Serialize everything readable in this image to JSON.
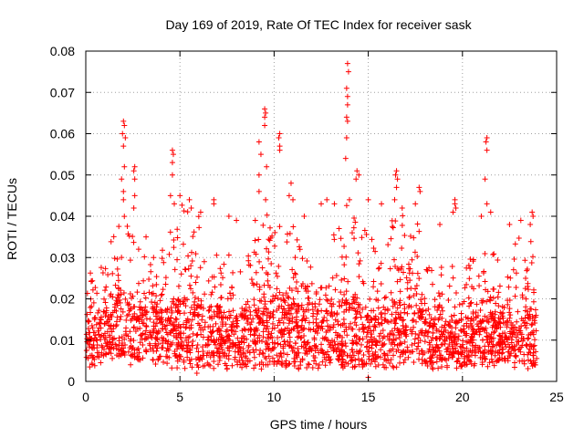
{
  "chart_data": {
    "type": "scatter",
    "title": "Day 169 of 2019, Rate Of TEC Index for receiver sask",
    "xlabel": "GPS time / hours",
    "ylabel": "ROTI / TECUs",
    "xlim": [
      0,
      25
    ],
    "ylim": [
      0,
      0.08
    ],
    "xticks": [
      0,
      5,
      10,
      15,
      20,
      25
    ],
    "yticks": [
      0,
      0.01,
      0.02,
      0.03,
      0.04,
      0.05,
      0.06,
      0.07,
      0.08
    ],
    "xtick_labels": [
      "0",
      "5",
      "10",
      "15",
      "20",
      "25"
    ],
    "ytick_labels": [
      "0",
      "0.01",
      "0.02",
      "0.03",
      "0.04",
      "0.05",
      "0.06",
      "0.07",
      "0.08"
    ],
    "grid": true,
    "marker": "+",
    "marker_color": "#ff0000",
    "background_density": {
      "note": "dense band of points; per time bin [hour, typical_low, typical_high, upper_envelope]",
      "bins": [
        [
          0.0,
          0.005,
          0.014,
          0.024
        ],
        [
          0.5,
          0.005,
          0.016,
          0.03
        ],
        [
          1.0,
          0.006,
          0.017,
          0.028
        ],
        [
          1.5,
          0.006,
          0.02,
          0.038
        ],
        [
          2.0,
          0.006,
          0.022,
          0.045
        ],
        [
          2.5,
          0.005,
          0.018,
          0.036
        ],
        [
          3.0,
          0.005,
          0.018,
          0.032
        ],
        [
          3.5,
          0.005,
          0.018,
          0.03
        ],
        [
          4.0,
          0.005,
          0.019,
          0.034
        ],
        [
          4.5,
          0.005,
          0.02,
          0.04
        ],
        [
          5.0,
          0.005,
          0.021,
          0.044
        ],
        [
          5.5,
          0.004,
          0.02,
          0.042
        ],
        [
          6.0,
          0.004,
          0.02,
          0.04
        ],
        [
          6.5,
          0.003,
          0.018,
          0.036
        ],
        [
          7.0,
          0.004,
          0.017,
          0.034
        ],
        [
          7.5,
          0.004,
          0.016,
          0.03
        ],
        [
          8.0,
          0.004,
          0.016,
          0.034
        ],
        [
          8.5,
          0.004,
          0.017,
          0.033
        ],
        [
          9.0,
          0.004,
          0.018,
          0.036
        ],
        [
          9.5,
          0.004,
          0.019,
          0.04
        ],
        [
          10.0,
          0.004,
          0.02,
          0.042
        ],
        [
          10.5,
          0.004,
          0.021,
          0.044
        ],
        [
          11.0,
          0.004,
          0.02,
          0.04
        ],
        [
          11.5,
          0.004,
          0.018,
          0.03
        ],
        [
          12.0,
          0.004,
          0.017,
          0.029
        ],
        [
          12.5,
          0.004,
          0.017,
          0.03
        ],
        [
          13.0,
          0.004,
          0.018,
          0.034
        ],
        [
          13.5,
          0.004,
          0.019,
          0.04
        ],
        [
          14.0,
          0.004,
          0.021,
          0.044
        ],
        [
          14.5,
          0.004,
          0.02,
          0.042
        ],
        [
          15.0,
          0.003,
          0.016,
          0.036
        ],
        [
          15.5,
          0.004,
          0.016,
          0.034
        ],
        [
          16.0,
          0.004,
          0.018,
          0.036
        ],
        [
          16.5,
          0.004,
          0.02,
          0.042
        ],
        [
          17.0,
          0.004,
          0.02,
          0.04
        ],
        [
          17.5,
          0.004,
          0.021,
          0.042
        ],
        [
          18.0,
          0.004,
          0.019,
          0.034
        ],
        [
          18.5,
          0.004,
          0.016,
          0.03
        ],
        [
          19.0,
          0.005,
          0.015,
          0.028
        ],
        [
          19.5,
          0.005,
          0.015,
          0.028
        ],
        [
          20.0,
          0.004,
          0.016,
          0.03
        ],
        [
          20.5,
          0.004,
          0.017,
          0.034
        ],
        [
          21.0,
          0.004,
          0.018,
          0.036
        ],
        [
          21.5,
          0.004,
          0.017,
          0.034
        ],
        [
          22.0,
          0.004,
          0.016,
          0.032
        ],
        [
          22.5,
          0.004,
          0.016,
          0.03
        ],
        [
          23.0,
          0.004,
          0.018,
          0.036
        ],
        [
          23.5,
          0.004,
          0.018,
          0.04
        ],
        [
          23.9,
          0.004,
          0.016,
          0.03
        ]
      ]
    },
    "notable_points": [
      {
        "x": 2.0,
        "y": 0.063
      },
      {
        "x": 2.05,
        "y": 0.062
      },
      {
        "x": 1.95,
        "y": 0.06
      },
      {
        "x": 2.1,
        "y": 0.059
      },
      {
        "x": 2.0,
        "y": 0.057
      },
      {
        "x": 2.05,
        "y": 0.052
      },
      {
        "x": 1.9,
        "y": 0.049
      },
      {
        "x": 2.0,
        "y": 0.046
      },
      {
        "x": 2.0,
        "y": 0.044
      },
      {
        "x": 2.6,
        "y": 0.052
      },
      {
        "x": 2.55,
        "y": 0.051
      },
      {
        "x": 2.6,
        "y": 0.049
      },
      {
        "x": 2.6,
        "y": 0.045
      },
      {
        "x": 2.55,
        "y": 0.042
      },
      {
        "x": 3.2,
        "y": 0.035
      },
      {
        "x": 3.6,
        "y": 0.03
      },
      {
        "x": 4.6,
        "y": 0.056
      },
      {
        "x": 4.65,
        "y": 0.055
      },
      {
        "x": 4.6,
        "y": 0.053
      },
      {
        "x": 4.6,
        "y": 0.05
      },
      {
        "x": 4.5,
        "y": 0.045
      },
      {
        "x": 4.7,
        "y": 0.043
      },
      {
        "x": 5.0,
        "y": 0.045
      },
      {
        "x": 5.5,
        "y": 0.044
      },
      {
        "x": 5.6,
        "y": 0.042
      },
      {
        "x": 6.1,
        "y": 0.041
      },
      {
        "x": 6.8,
        "y": 0.044
      },
      {
        "x": 6.8,
        "y": 0.043
      },
      {
        "x": 7.6,
        "y": 0.04
      },
      {
        "x": 8.0,
        "y": 0.039
      },
      {
        "x": 9.2,
        "y": 0.058
      },
      {
        "x": 9.3,
        "y": 0.055
      },
      {
        "x": 9.2,
        "y": 0.05
      },
      {
        "x": 9.2,
        "y": 0.046
      },
      {
        "x": 9.0,
        "y": 0.039
      },
      {
        "x": 9.5,
        "y": 0.066
      },
      {
        "x": 9.55,
        "y": 0.065
      },
      {
        "x": 9.5,
        "y": 0.064
      },
      {
        "x": 9.5,
        "y": 0.062
      },
      {
        "x": 9.6,
        "y": 0.052
      },
      {
        "x": 9.55,
        "y": 0.044
      },
      {
        "x": 10.3,
        "y": 0.06
      },
      {
        "x": 10.25,
        "y": 0.059
      },
      {
        "x": 10.3,
        "y": 0.057
      },
      {
        "x": 10.3,
        "y": 0.056
      },
      {
        "x": 10.9,
        "y": 0.048
      },
      {
        "x": 10.8,
        "y": 0.045
      },
      {
        "x": 11.0,
        "y": 0.044
      },
      {
        "x": 11.6,
        "y": 0.04
      },
      {
        "x": 12.5,
        "y": 0.043
      },
      {
        "x": 12.8,
        "y": 0.044
      },
      {
        "x": 13.2,
        "y": 0.043
      },
      {
        "x": 13.9,
        "y": 0.077
      },
      {
        "x": 13.95,
        "y": 0.075
      },
      {
        "x": 13.85,
        "y": 0.071
      },
      {
        "x": 13.9,
        "y": 0.069
      },
      {
        "x": 13.9,
        "y": 0.067
      },
      {
        "x": 13.85,
        "y": 0.064
      },
      {
        "x": 13.9,
        "y": 0.063
      },
      {
        "x": 13.85,
        "y": 0.059
      },
      {
        "x": 13.8,
        "y": 0.054
      },
      {
        "x": 14.4,
        "y": 0.051
      },
      {
        "x": 14.5,
        "y": 0.05
      },
      {
        "x": 14.35,
        "y": 0.049
      },
      {
        "x": 14.0,
        "y": 0.044
      },
      {
        "x": 15.0,
        "y": 0.044
      },
      {
        "x": 15.7,
        "y": 0.043
      },
      {
        "x": 16.5,
        "y": 0.051
      },
      {
        "x": 16.45,
        "y": 0.05
      },
      {
        "x": 16.55,
        "y": 0.049
      },
      {
        "x": 16.5,
        "y": 0.047
      },
      {
        "x": 16.4,
        "y": 0.044
      },
      {
        "x": 16.8,
        "y": 0.042
      },
      {
        "x": 17.7,
        "y": 0.047
      },
      {
        "x": 17.75,
        "y": 0.046
      },
      {
        "x": 17.5,
        "y": 0.043
      },
      {
        "x": 18.8,
        "y": 0.038
      },
      {
        "x": 19.6,
        "y": 0.044
      },
      {
        "x": 19.6,
        "y": 0.043
      },
      {
        "x": 19.65,
        "y": 0.042
      },
      {
        "x": 19.5,
        "y": 0.041
      },
      {
        "x": 21.3,
        "y": 0.059
      },
      {
        "x": 21.25,
        "y": 0.058
      },
      {
        "x": 21.3,
        "y": 0.056
      },
      {
        "x": 21.2,
        "y": 0.049
      },
      {
        "x": 21.3,
        "y": 0.043
      },
      {
        "x": 21.5,
        "y": 0.041
      },
      {
        "x": 21.0,
        "y": 0.04
      },
      {
        "x": 22.5,
        "y": 0.038
      },
      {
        "x": 23.1,
        "y": 0.039
      },
      {
        "x": 23.7,
        "y": 0.041
      },
      {
        "x": 23.75,
        "y": 0.04
      },
      {
        "x": 23.6,
        "y": 0.038
      },
      {
        "x": 5.9,
        "y": 0.002
      },
      {
        "x": 15.0,
        "y": 0.001
      },
      {
        "x": 7.5,
        "y": 0.003
      }
    ]
  }
}
